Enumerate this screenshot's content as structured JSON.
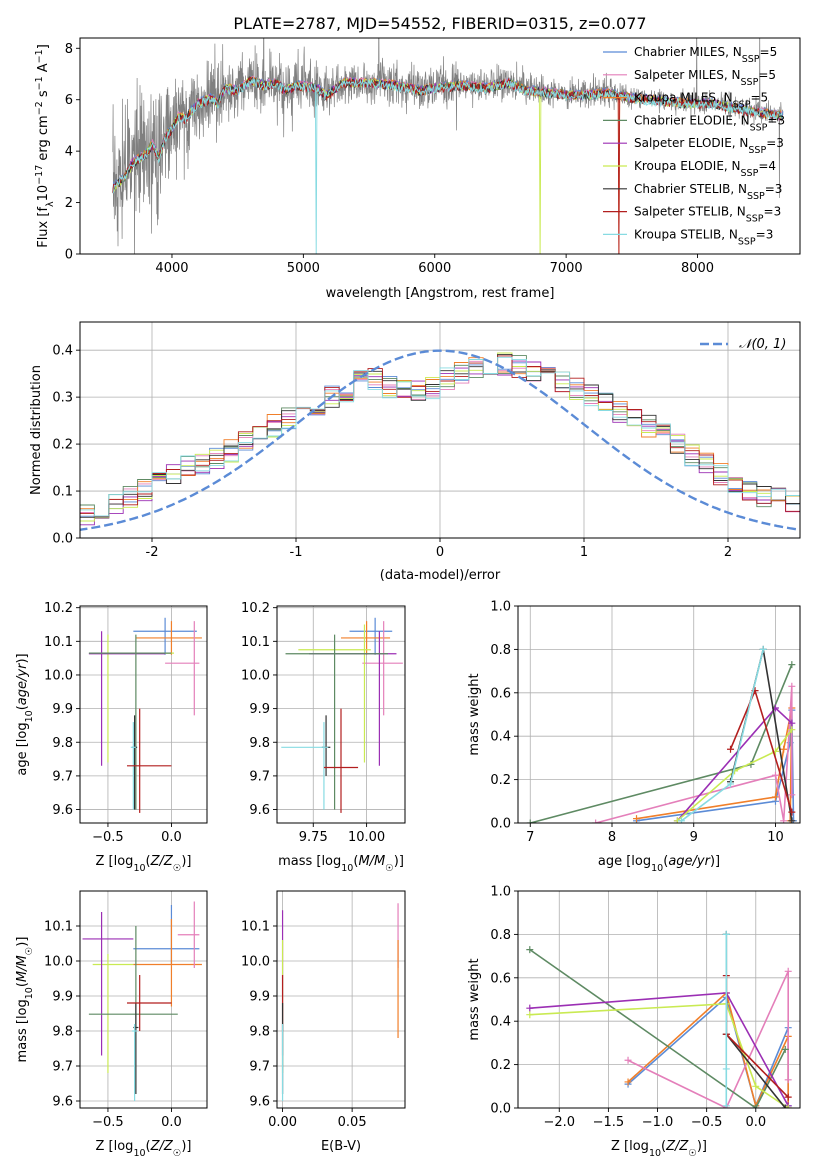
{
  "figure_title": "PLATE=2787, MJD=54552, FIBERID=0315, z=0.077",
  "colors": {
    "Chabrier MILES": "#5b8bd6",
    "Salpeter MILES": "#e47fba",
    "Kroupa MILES": "#f07f2a",
    "Chabrier ELODIE": "#5e8a63",
    "Salpeter ELODIE": "#9b2fb4",
    "Kroupa ELODIE": "#c9ea52",
    "Chabrier STELIB": "#333333",
    "Salpeter STELIB": "#b21f1f",
    "Kroupa STELIB": "#87dbe2",
    "data": "#808080",
    "normal": "#5b8bd6"
  },
  "chart_data": [
    {
      "id": "spectrum",
      "type": "line",
      "xlabel": "wavelength [Angstrom, rest frame]",
      "ylabel": "Flux [f_λ10^-17 erg cm^-2 s^-1 A^-1]",
      "xlim": [
        3300,
        8780
      ],
      "ylim": [
        0,
        8.4
      ],
      "xticks": [
        4000,
        5000,
        6000,
        7000,
        8000
      ],
      "yticks": [
        0,
        2,
        4,
        6,
        8
      ],
      "legend_position": "right",
      "legend": [
        {
          "label": "Chabrier MILES, N",
          "sub": "SSP",
          "suffix": "=5"
        },
        {
          "label": "Salpeter MILES, N",
          "sub": "SSP",
          "suffix": "=5"
        },
        {
          "label": "Kroupa MILES, N",
          "sub": "SSP",
          "suffix": "=5"
        },
        {
          "label": "Chabrier ELODIE, N",
          "sub": "SSP",
          "suffix": "=3"
        },
        {
          "label": "Salpeter ELODIE, N",
          "sub": "SSP",
          "suffix": "=3"
        },
        {
          "label": "Kroupa ELODIE, N",
          "sub": "SSP",
          "suffix": "=4"
        },
        {
          "label": "Chabrier STELIB, N",
          "sub": "SSP",
          "suffix": "=3"
        },
        {
          "label": "Salpeter STELIB, N",
          "sub": "SSP",
          "suffix": "=3"
        },
        {
          "label": "Kroupa STELIB, N",
          "sub": "SSP",
          "suffix": "=3"
        }
      ],
      "model_continuum": [
        [
          3550,
          2.6
        ],
        [
          3650,
          3.1
        ],
        [
          3700,
          3.6
        ],
        [
          3800,
          3.9
        ],
        [
          3850,
          4.3
        ],
        [
          3900,
          3.8
        ],
        [
          3950,
          4.6
        ],
        [
          4000,
          4.9
        ],
        [
          4050,
          5.4
        ],
        [
          4100,
          5.3
        ],
        [
          4150,
          5.6
        ],
        [
          4200,
          5.9
        ],
        [
          4300,
          6.1
        ],
        [
          4350,
          5.9
        ],
        [
          4400,
          6.5
        ],
        [
          4500,
          6.4
        ],
        [
          4600,
          6.8
        ],
        [
          4700,
          6.6
        ],
        [
          4800,
          6.7
        ],
        [
          4861,
          6.4
        ],
        [
          4950,
          6.6
        ],
        [
          5100,
          6.5
        ],
        [
          5175,
          6.2
        ],
        [
          5300,
          6.7
        ],
        [
          5500,
          6.7
        ],
        [
          5700,
          6.6
        ],
        [
          5890,
          6.4
        ],
        [
          6000,
          6.5
        ],
        [
          6200,
          6.6
        ],
        [
          6400,
          6.5
        ],
        [
          6563,
          6.7
        ],
        [
          6700,
          6.4
        ],
        [
          6900,
          6.3
        ],
        [
          7100,
          6.2
        ],
        [
          7300,
          6.3
        ],
        [
          7500,
          6.1
        ],
        [
          7700,
          6.0
        ],
        [
          7900,
          5.9
        ],
        [
          8100,
          5.9
        ],
        [
          8400,
          5.6
        ],
        [
          8650,
          5.4
        ]
      ]
    },
    {
      "id": "residuals",
      "type": "histogram",
      "xlabel": "(data-model)/error",
      "ylabel": "Normed distribution",
      "xlim": [
        -2.5,
        2.5
      ],
      "ylim": [
        0,
        0.46
      ],
      "xticks": [
        -2,
        -1,
        0,
        1,
        2
      ],
      "yticks": [
        0.0,
        0.1,
        0.2,
        0.3,
        0.4
      ],
      "legend": [
        "𝒩(0, 1)"
      ],
      "legend_position": "upper right",
      "bin_width": 0.1,
      "approx_counts": [
        0.036,
        0.04,
        0.043,
        0.035,
        0.036,
        0.052,
        0.06,
        0.075,
        0.088,
        0.1,
        0.118,
        0.14,
        0.158,
        0.16,
        0.17,
        0.186,
        0.205,
        0.227,
        0.24,
        0.255,
        0.258,
        0.285,
        0.303,
        0.315,
        0.335,
        0.34,
        0.32,
        0.312,
        0.31,
        0.32,
        0.34,
        0.352,
        0.36,
        0.37,
        0.372,
        0.365,
        0.356,
        0.343,
        0.33,
        0.318,
        0.305,
        0.29,
        0.268,
        0.255,
        0.238,
        0.22,
        0.2,
        0.175,
        0.16,
        0.135,
        0.118,
        0.1,
        0.09,
        0.082,
        0.075,
        0.07,
        0.065,
        0.058,
        0.052,
        0.048
      ]
    },
    {
      "id": "age_vs_Z",
      "type": "errorbar",
      "xlabel": "Z [log10(Z/Z☉)]",
      "ylabel": "age  [log10(age/yr)]",
      "xlim": [
        -0.72,
        0.28
      ],
      "ylim": [
        9.56,
        10.205
      ],
      "xticks": [
        -0.5,
        0.0
      ],
      "xticklabels": [
        "−0.5",
        "0.0"
      ],
      "yticks": [
        9.6,
        9.7,
        9.8,
        9.9,
        10.0,
        10.1,
        10.2
      ],
      "points": [
        {
          "model": "Chabrier MILES",
          "x": -0.05,
          "y": 10.13,
          "xlo": -0.3,
          "xhi": 0.2,
          "ylo": 10.06,
          "yhi": 10.17
        },
        {
          "model": "Kroupa MILES",
          "x": 0.0,
          "y": 10.11,
          "xlo": -0.28,
          "xhi": 0.24,
          "ylo": 10.06,
          "yhi": 10.16
        },
        {
          "model": "Salpeter MILES",
          "x": 0.18,
          "y": 10.035,
          "xlo": -0.05,
          "xhi": 0.22,
          "ylo": 9.88,
          "yhi": 10.16
        },
        {
          "model": "Kroupa ELODIE",
          "x": -0.5,
          "y": 10.065,
          "xlo": -0.6,
          "xhi": 0.02,
          "ylo": 9.74,
          "yhi": 10.12
        },
        {
          "model": "Salpeter ELODIE",
          "x": -0.55,
          "y": 10.063,
          "xlo": -0.65,
          "xhi": -0.05,
          "ylo": 9.73,
          "yhi": 10.13
        },
        {
          "model": "Chabrier ELODIE",
          "x": -0.28,
          "y": 10.065,
          "xlo": -0.65,
          "xhi": 0.0,
          "ylo": 9.6,
          "yhi": 10.12
        },
        {
          "model": "Chabrier STELIB",
          "x": -0.29,
          "y": 9.785,
          "xlo": -0.31,
          "xhi": -0.27,
          "ylo": 9.6,
          "yhi": 9.88
        },
        {
          "model": "Kroupa STELIB",
          "x": -0.3,
          "y": 9.785,
          "xlo": -0.32,
          "xhi": -0.28,
          "ylo": 9.6,
          "yhi": 9.86
        },
        {
          "model": "Salpeter STELIB",
          "x": -0.25,
          "y": 9.73,
          "xlo": -0.35,
          "xhi": 0.0,
          "ylo": 9.59,
          "yhi": 9.9
        }
      ]
    },
    {
      "id": "age_vs_mass",
      "type": "errorbar",
      "xlabel": "mass [log10(M/M☉)]",
      "ylabel": "",
      "xlim": [
        9.58,
        10.18
      ],
      "ylim": [
        9.56,
        10.205
      ],
      "xticks": [
        9.75,
        10.0
      ],
      "xticklabels": [
        "9.75",
        "10.00"
      ],
      "yticks": [
        9.6,
        9.7,
        9.8,
        9.9,
        10.0,
        10.1,
        10.2
      ],
      "points": [
        {
          "model": "Chabrier MILES",
          "x": 10.04,
          "y": 10.13,
          "xlo": 9.92,
          "xhi": 10.12,
          "ylo": 10.06,
          "yhi": 10.17
        },
        {
          "model": "Kroupa MILES",
          "x": 10.0,
          "y": 10.11,
          "xlo": 9.88,
          "xhi": 10.11,
          "ylo": 10.06,
          "yhi": 10.16
        },
        {
          "model": "Salpeter MILES",
          "x": 10.08,
          "y": 10.035,
          "xlo": 9.98,
          "xhi": 10.17,
          "ylo": 9.88,
          "yhi": 10.16
        },
        {
          "model": "Kroupa ELODIE",
          "x": 9.99,
          "y": 10.075,
          "xlo": 9.68,
          "xhi": 10.02,
          "ylo": 9.74,
          "yhi": 10.15
        },
        {
          "model": "Salpeter ELODIE",
          "x": 10.06,
          "y": 10.063,
          "xlo": 9.73,
          "xhi": 10.14,
          "ylo": 9.73,
          "yhi": 10.13
        },
        {
          "model": "Chabrier ELODIE",
          "x": 9.85,
          "y": 10.063,
          "xlo": 9.62,
          "xhi": 10.1,
          "ylo": 9.6,
          "yhi": 10.12
        },
        {
          "model": "Chabrier STELIB",
          "x": 9.81,
          "y": 9.785,
          "xlo": 9.79,
          "xhi": 9.83,
          "ylo": 9.7,
          "yhi": 9.88
        },
        {
          "model": "Kroupa STELIB",
          "x": 9.8,
          "y": 9.785,
          "xlo": 9.6,
          "xhi": 9.82,
          "ylo": 9.6,
          "yhi": 9.86
        },
        {
          "model": "Salpeter STELIB",
          "x": 9.88,
          "y": 9.725,
          "xlo": 9.8,
          "xhi": 9.96,
          "ylo": 9.59,
          "yhi": 9.9
        }
      ]
    },
    {
      "id": "weight_vs_age",
      "type": "line",
      "xlabel": "age  [log10(age/yr)]",
      "ylabel": "mass weight",
      "xlim": [
        6.85,
        10.3
      ],
      "ylim": [
        0,
        1.0
      ],
      "xticks": [
        7,
        8,
        9,
        10
      ],
      "yticks": [
        0.0,
        0.2,
        0.4,
        0.6,
        0.8,
        1.0
      ],
      "series": [
        {
          "model": "Chabrier MILES",
          "x": [
            8.3,
            10.0,
            10.18,
            10.2,
            10.22
          ],
          "y": [
            0.01,
            0.1,
            0.37,
            0.52,
            0.01
          ]
        },
        {
          "model": "Kroupa MILES",
          "x": [
            8.3,
            10.0,
            10.1,
            10.2,
            10.18
          ],
          "y": [
            0.02,
            0.12,
            0.34,
            0.53,
            0.01
          ]
        },
        {
          "model": "Salpeter MILES",
          "x": [
            7.8,
            10.0,
            10.1,
            10.2,
            10.2
          ],
          "y": [
            0.0,
            0.22,
            0.01,
            0.63,
            0.13
          ]
        },
        {
          "model": "Chabrier ELODIE",
          "x": [
            7.0,
            9.7,
            10.2
          ],
          "y": [
            0.0,
            0.27,
            0.73
          ]
        },
        {
          "model": "Salpeter ELODIE",
          "x": [
            8.8,
            10.0,
            10.2
          ],
          "y": [
            0.01,
            0.53,
            0.46
          ]
        },
        {
          "model": "Kroupa ELODIE",
          "x": [
            8.8,
            9.5,
            10.0,
            10.2
          ],
          "y": [
            0.01,
            0.24,
            0.33,
            0.43
          ]
        },
        {
          "model": "Chabrier STELIB",
          "x": [
            9.45,
            9.85,
            10.2
          ],
          "y": [
            0.19,
            0.8,
            0.01
          ]
        },
        {
          "model": "Salpeter STELIB",
          "x": [
            9.45,
            9.75,
            10.2
          ],
          "y": [
            0.34,
            0.61,
            0.05
          ]
        },
        {
          "model": "Kroupa STELIB",
          "x": [
            8.85,
            9.45,
            9.85
          ],
          "y": [
            0.01,
            0.18,
            0.8
          ]
        }
      ]
    },
    {
      "id": "mass_vs_Z",
      "type": "errorbar",
      "xlabel": "Z [log10(Z/Z☉)]",
      "ylabel": "mass [log10(M/M☉)]",
      "xlim": [
        -0.72,
        0.28
      ],
      "ylim": [
        9.58,
        10.2
      ],
      "xticks": [
        -0.5,
        0.0
      ],
      "xticklabels": [
        "−0.5",
        "0.0"
      ],
      "yticks": [
        9.6,
        9.7,
        9.8,
        9.9,
        10.0,
        10.1
      ],
      "points": [
        {
          "model": "Chabrier MILES",
          "x": 0.0,
          "y": 10.035,
          "xlo": -0.3,
          "xhi": 0.22,
          "ylo": 9.99,
          "yhi": 10.16
        },
        {
          "model": "Kroupa MILES",
          "x": 0.0,
          "y": 9.99,
          "xlo": -0.3,
          "xhi": 0.24,
          "ylo": 9.87,
          "yhi": 10.12
        },
        {
          "model": "Salpeter MILES",
          "x": 0.18,
          "y": 10.075,
          "xlo": 0.05,
          "xhi": 0.22,
          "ylo": 9.98,
          "yhi": 10.17
        },
        {
          "model": "Kroupa ELODIE",
          "x": -0.5,
          "y": 9.99,
          "xlo": -0.62,
          "xhi": -0.3,
          "ylo": 9.68,
          "yhi": 10.02
        },
        {
          "model": "Salpeter ELODIE",
          "x": -0.55,
          "y": 10.063,
          "xlo": -0.7,
          "xhi": -0.3,
          "ylo": 9.73,
          "yhi": 10.14
        },
        {
          "model": "Chabrier ELODIE",
          "x": -0.28,
          "y": 9.848,
          "xlo": -0.65,
          "xhi": 0.05,
          "ylo": 9.62,
          "yhi": 10.1
        },
        {
          "model": "Chabrier STELIB",
          "x": -0.28,
          "y": 9.81,
          "xlo": -0.3,
          "xhi": -0.26,
          "ylo": 9.62,
          "yhi": 9.88
        },
        {
          "model": "Kroupa STELIB",
          "x": -0.29,
          "y": 9.8,
          "xlo": -0.31,
          "xhi": -0.27,
          "ylo": 9.6,
          "yhi": 9.82
        },
        {
          "model": "Salpeter STELIB",
          "x": -0.25,
          "y": 9.88,
          "xlo": -0.35,
          "xhi": 0.0,
          "ylo": 9.8,
          "yhi": 9.96
        }
      ]
    },
    {
      "id": "mass_vs_ebv",
      "type": "errorbar",
      "xlabel": "E(B-V)",
      "ylabel": "",
      "xlim": [
        -0.004,
        0.088
      ],
      "ylim": [
        9.58,
        10.2
      ],
      "xticks": [
        0.0,
        0.05
      ],
      "xticklabels": [
        "0.00",
        "0.05"
      ],
      "yticks": [
        9.6,
        9.7,
        9.8,
        9.9,
        10.0,
        10.1
      ],
      "points": [
        {
          "model": "Salpeter ELODIE",
          "x": 0.0,
          "y": 10.06,
          "xlo": 0.0,
          "xhi": 0.0,
          "ylo": 9.73,
          "yhi": 10.145
        },
        {
          "model": "Kroupa ELODIE",
          "x": 0.0,
          "y": 9.99,
          "xlo": 0.0,
          "xhi": 0.0,
          "ylo": 9.68,
          "yhi": 10.06
        },
        {
          "model": "Salpeter STELIB",
          "x": 0.0,
          "y": 9.88,
          "xlo": 0.0,
          "xhi": 0.0,
          "ylo": 9.8,
          "yhi": 9.96
        },
        {
          "model": "Chabrier STELIB",
          "x": 0.0,
          "y": 9.81,
          "xlo": 0.0,
          "xhi": 0.0,
          "ylo": 9.62,
          "yhi": 9.88
        },
        {
          "model": "Kroupa STELIB",
          "x": 0.0,
          "y": 9.8,
          "xlo": 0.0,
          "xhi": 0.0,
          "ylo": 9.6,
          "yhi": 9.82
        },
        {
          "model": "Salpeter MILES",
          "x": 0.083,
          "y": 10.075,
          "xlo": 0.083,
          "xhi": 0.083,
          "ylo": 9.98,
          "yhi": 10.165
        },
        {
          "model": "Kroupa MILES",
          "x": 0.083,
          "y": 9.95,
          "xlo": 0.083,
          "xhi": 0.083,
          "ylo": 9.78,
          "yhi": 10.06
        }
      ]
    },
    {
      "id": "weight_vs_Z",
      "type": "line",
      "xlabel": "Z [log10(Z/Z☉)]",
      "ylabel": "mass weight",
      "xlim": [
        -2.42,
        0.45
      ],
      "ylim": [
        0,
        1.0
      ],
      "xticks": [
        -2.0,
        -1.5,
        -1.0,
        -0.5,
        0.0
      ],
      "xticklabels": [
        "−2.0",
        "−1.5",
        "−1.0",
        "−0.5",
        "0.0"
      ],
      "yticks": [
        0.0,
        0.2,
        0.4,
        0.6,
        0.8,
        1.0
      ],
      "series": [
        {
          "model": "Chabrier MILES",
          "x": [
            -1.3,
            -0.3,
            0.0,
            0.33,
            0.33
          ],
          "y": [
            0.11,
            0.51,
            0.01,
            0.37,
            0.01
          ]
        },
        {
          "model": "Kroupa MILES",
          "x": [
            -1.3,
            -0.3,
            0.0,
            0.33,
            0.33
          ],
          "y": [
            0.12,
            0.53,
            0.01,
            0.33,
            0.0
          ]
        },
        {
          "model": "Salpeter MILES",
          "x": [
            -1.3,
            -0.3,
            0.33,
            0.33
          ],
          "y": [
            0.22,
            0.0,
            0.63,
            0.13
          ]
        },
        {
          "model": "Chabrier ELODIE",
          "x": [
            -2.3,
            0.0,
            0.3
          ],
          "y": [
            0.73,
            0.0,
            0.27
          ]
        },
        {
          "model": "Salpeter ELODIE",
          "x": [
            -2.3,
            -0.3,
            0.33
          ],
          "y": [
            0.46,
            0.53,
            0.01
          ]
        },
        {
          "model": "Kroupa ELODIE",
          "x": [
            -2.3,
            -0.3,
            0.0,
            0.33
          ],
          "y": [
            0.43,
            0.48,
            0.1,
            0.0
          ]
        },
        {
          "model": "Chabrier STELIB",
          "x": [
            -0.3,
            -0.3,
            0.3
          ],
          "y": [
            0.8,
            0.34,
            0.0
          ]
        },
        {
          "model": "Salpeter STELIB",
          "x": [
            -0.3,
            -0.3,
            0.33
          ],
          "y": [
            0.61,
            0.34,
            0.05
          ]
        },
        {
          "model": "Kroupa STELIB",
          "x": [
            -0.3,
            -0.3,
            -0.3
          ],
          "y": [
            0.8,
            0.01,
            0.18
          ]
        }
      ]
    }
  ]
}
